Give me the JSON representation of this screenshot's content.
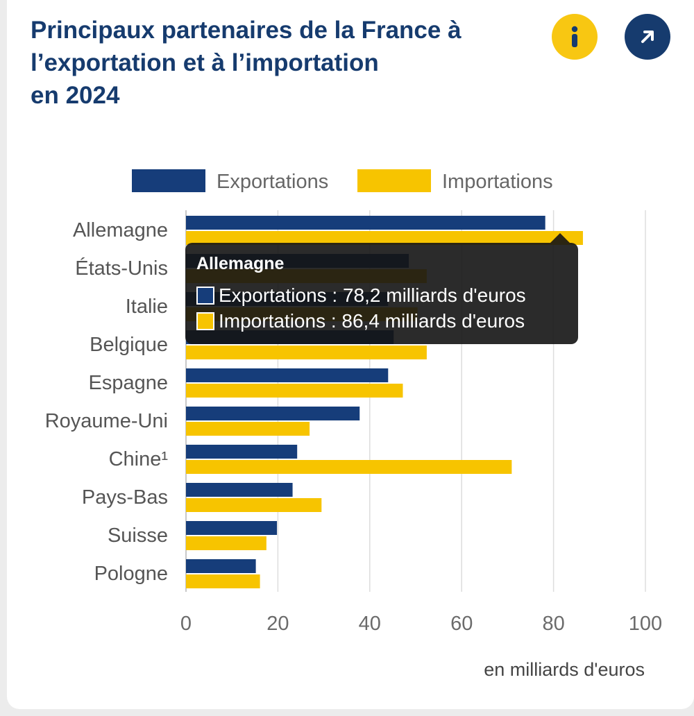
{
  "header": {
    "title": "Principaux partenaires de la France à\nl’exportation et à l’importation\nen 2024",
    "info_icon": "info-icon",
    "open_icon": "external-link-arrow-icon"
  },
  "colors": {
    "exports": "#163d7a",
    "imports": "#f7c400",
    "title": "#163b6e",
    "axis_text": "#6b6b6b",
    "grid": "#dddddd"
  },
  "chart_data": {
    "type": "bar",
    "orientation": "horizontal",
    "categories": [
      "Allemagne",
      "États-Unis",
      "Italie",
      "Belgique",
      "Espagne",
      "Royaume-Uni",
      "Chine¹",
      "Pays-Bas",
      "Suisse",
      "Pologne"
    ],
    "series": [
      {
        "name": "Exportations",
        "values": [
          78.2,
          48.5,
          44.0,
          45.2,
          44.0,
          37.8,
          24.2,
          23.2,
          19.8,
          15.2
        ]
      },
      {
        "name": "Importations",
        "values": [
          86.4,
          52.4,
          50.4,
          52.4,
          47.2,
          26.9,
          70.9,
          29.5,
          17.5,
          16.1
        ]
      }
    ],
    "xlim": [
      0,
      100
    ],
    "xticks": [
      0,
      20,
      40,
      60,
      80,
      100
    ],
    "xtick_labels": [
      "0",
      "20",
      "40",
      "60",
      "80",
      "100"
    ],
    "xlabel": "en milliards d'euros",
    "ylabel": "",
    "legend": [
      "Exportations",
      "Importations"
    ],
    "legend_position": "top",
    "grid": true
  },
  "tooltip": {
    "title": "Allemagne",
    "rows": [
      {
        "label": "Exportations : 78,2 milliards d'euros"
      },
      {
        "label": "Importations : 86,4 milliards d'euros"
      }
    ]
  }
}
